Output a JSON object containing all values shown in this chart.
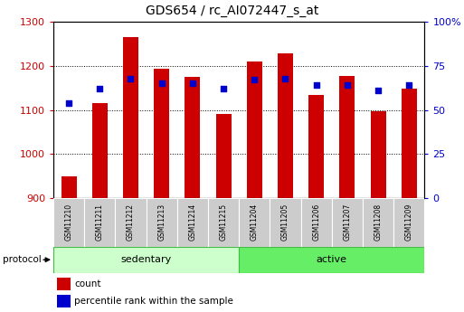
{
  "title": "GDS654 / rc_AI072447_s_at",
  "samples": [
    "GSM11210",
    "GSM11211",
    "GSM11212",
    "GSM11213",
    "GSM11214",
    "GSM11215",
    "GSM11204",
    "GSM11205",
    "GSM11206",
    "GSM11207",
    "GSM11208",
    "GSM11209"
  ],
  "counts": [
    950,
    1115,
    1265,
    1193,
    1176,
    1090,
    1210,
    1228,
    1135,
    1178,
    1098,
    1148
  ],
  "percentiles": [
    54,
    62,
    68,
    65,
    65,
    62,
    67,
    68,
    64,
    64,
    61,
    64
  ],
  "ylim_left": [
    900,
    1300
  ],
  "ylim_right": [
    0,
    100
  ],
  "bar_color": "#cc0000",
  "dot_color": "#0000cc",
  "plot_bg": "#ffffff",
  "tick_color_left": "#cc0000",
  "tick_color_right": "#0000cc",
  "sedentary_color": "#ccffcc",
  "active_color": "#66ee66",
  "label_bg": "#cccccc",
  "label_count": "count",
  "label_percentile": "percentile rank within the sample",
  "protocol_label": "protocol",
  "left_ticks": [
    900,
    1000,
    1100,
    1200,
    1300
  ],
  "right_ticks": [
    0,
    25,
    50,
    75,
    100
  ],
  "right_tick_labels": [
    "0",
    "25",
    "50",
    "75",
    "100%"
  ]
}
